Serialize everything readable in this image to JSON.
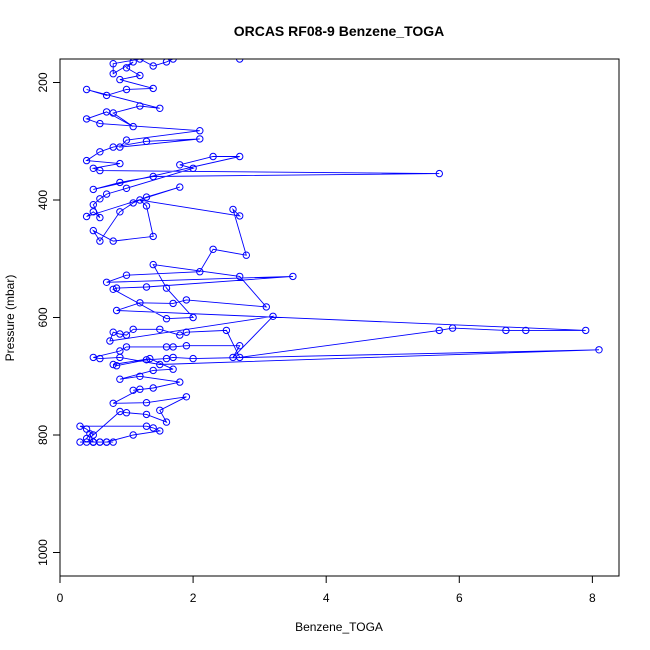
{
  "chart_data": {
    "type": "line",
    "title": "ORCAS RF08-9 Benzene_TOGA",
    "xlabel": "Benzene_TOGA",
    "ylabel": "Pressure (mbar)",
    "xlim": [
      0,
      8.4
    ],
    "ylim": [
      1040,
      160
    ],
    "y_inverted": true,
    "x_ticks": [
      0,
      2,
      4,
      6,
      8
    ],
    "y_ticks": [
      200,
      400,
      600,
      800,
      1000
    ],
    "grid": false,
    "legend": "none",
    "series_color": "#0000ff",
    "marker": "open-circle",
    "series": [
      {
        "points": [
          [
            0.3,
            812
          ],
          [
            0.4,
            812
          ],
          [
            0.5,
            812
          ],
          [
            0.6,
            812
          ],
          [
            0.7,
            812
          ],
          [
            0.8,
            812
          ],
          [
            0.5,
            812
          ],
          [
            0.4,
            806
          ],
          [
            0.45,
            798
          ],
          [
            0.5,
            812
          ],
          [
            0.6,
            812
          ],
          [
            0.7,
            812
          ],
          [
            1.1,
            800
          ],
          [
            1.5,
            793
          ],
          [
            1.4,
            788
          ],
          [
            1.3,
            785
          ],
          [
            0.3,
            785
          ],
          [
            0.4,
            790
          ],
          [
            0.5,
            800
          ],
          [
            0.9,
            760
          ],
          [
            1.0,
            762
          ],
          [
            1.3,
            765
          ],
          [
            1.6,
            778
          ],
          [
            1.5,
            758
          ],
          [
            1.9,
            735
          ],
          [
            1.3,
            745
          ],
          [
            0.8,
            746
          ],
          [
            1.2,
            722
          ],
          [
            1.1,
            724
          ],
          [
            1.4,
            720
          ],
          [
            1.8,
            710
          ],
          [
            1.2,
            700
          ],
          [
            0.9,
            705
          ],
          [
            1.4,
            690
          ],
          [
            1.7,
            688
          ],
          [
            1.35,
            670
          ],
          [
            0.8,
            680
          ],
          [
            0.85,
            682
          ],
          [
            1.3,
            672
          ],
          [
            1.6,
            670
          ],
          [
            1.7,
            668
          ],
          [
            2.0,
            670
          ],
          [
            8.1,
            655
          ],
          [
            1.5,
            680
          ],
          [
            0.9,
            668
          ],
          [
            0.6,
            670
          ],
          [
            0.5,
            668
          ],
          [
            0.9,
            657
          ],
          [
            1.0,
            650
          ],
          [
            1.6,
            650
          ],
          [
            1.7,
            650
          ],
          [
            1.9,
            648
          ],
          [
            2.7,
            648
          ],
          [
            2.6,
            668
          ],
          [
            3.2,
            598
          ],
          [
            0.75,
            640
          ],
          [
            0.8,
            625
          ],
          [
            0.9,
            628
          ],
          [
            1.0,
            630
          ],
          [
            1.1,
            620
          ],
          [
            1.5,
            620
          ],
          [
            1.8,
            630
          ],
          [
            1.9,
            625
          ],
          [
            2.5,
            622
          ],
          [
            2.7,
            668
          ],
          [
            5.7,
            622
          ],
          [
            5.9,
            618
          ],
          [
            6.7,
            622
          ],
          [
            7.0,
            622
          ],
          [
            7.9,
            622
          ],
          [
            0.85,
            588
          ],
          [
            1.2,
            575
          ],
          [
            1.7,
            576
          ],
          [
            1.9,
            570
          ],
          [
            3.1,
            582
          ],
          [
            2.7,
            530
          ],
          [
            1.4,
            510
          ],
          [
            1.6,
            550
          ],
          [
            2.0,
            600
          ],
          [
            1.6,
            602
          ],
          [
            0.8,
            552
          ],
          [
            0.85,
            550
          ],
          [
            1.3,
            548
          ],
          [
            3.5,
            530
          ],
          [
            0.7,
            540
          ],
          [
            1.0,
            528
          ],
          [
            2.1,
            522
          ],
          [
            2.3,
            484
          ],
          [
            2.8,
            494
          ],
          [
            2.6,
            416
          ],
          [
            2.7,
            427
          ],
          [
            1.2,
            400
          ],
          [
            1.3,
            410
          ],
          [
            1.4,
            462
          ],
          [
            0.8,
            470
          ],
          [
            0.5,
            452
          ],
          [
            0.6,
            470
          ],
          [
            0.9,
            420
          ],
          [
            1.1,
            405
          ],
          [
            1.3,
            395
          ],
          [
            1.8,
            378
          ],
          [
            0.4,
            428
          ],
          [
            0.5,
            420
          ],
          [
            0.6,
            430
          ],
          [
            0.5,
            408
          ],
          [
            0.6,
            398
          ],
          [
            0.7,
            390
          ],
          [
            1.0,
            380
          ],
          [
            2.0,
            346
          ],
          [
            1.8,
            340
          ],
          [
            2.3,
            326
          ],
          [
            2.7,
            326
          ],
          [
            0.5,
            382
          ],
          [
            0.9,
            370
          ],
          [
            1.4,
            360
          ],
          [
            5.7,
            355
          ],
          [
            0.6,
            350
          ],
          [
            0.5,
            346
          ],
          [
            0.9,
            338
          ],
          [
            0.4,
            333
          ],
          [
            0.6,
            318
          ],
          [
            0.8,
            310
          ],
          [
            1.3,
            300
          ],
          [
            2.1,
            296
          ],
          [
            0.9,
            310
          ],
          [
            1.0,
            298
          ],
          [
            2.1,
            282
          ],
          [
            0.6,
            270
          ],
          [
            0.4,
            262
          ],
          [
            0.7,
            250
          ],
          [
            1.1,
            275
          ],
          [
            0.8,
            252
          ],
          [
            1.2,
            240
          ],
          [
            1.5,
            244
          ],
          [
            0.4,
            212
          ],
          [
            0.7,
            222
          ],
          [
            1.0,
            212
          ],
          [
            1.4,
            210
          ],
          [
            0.9,
            195
          ],
          [
            1.2,
            188
          ],
          [
            1.0,
            175
          ],
          [
            1.1,
            165
          ],
          [
            0.8,
            185
          ],
          [
            0.8,
            168
          ],
          [
            1.2,
            160
          ],
          [
            1.4,
            172
          ],
          [
            1.6,
            165
          ],
          [
            1.7,
            160
          ],
          [
            2.7,
            160
          ]
        ]
      }
    ]
  }
}
